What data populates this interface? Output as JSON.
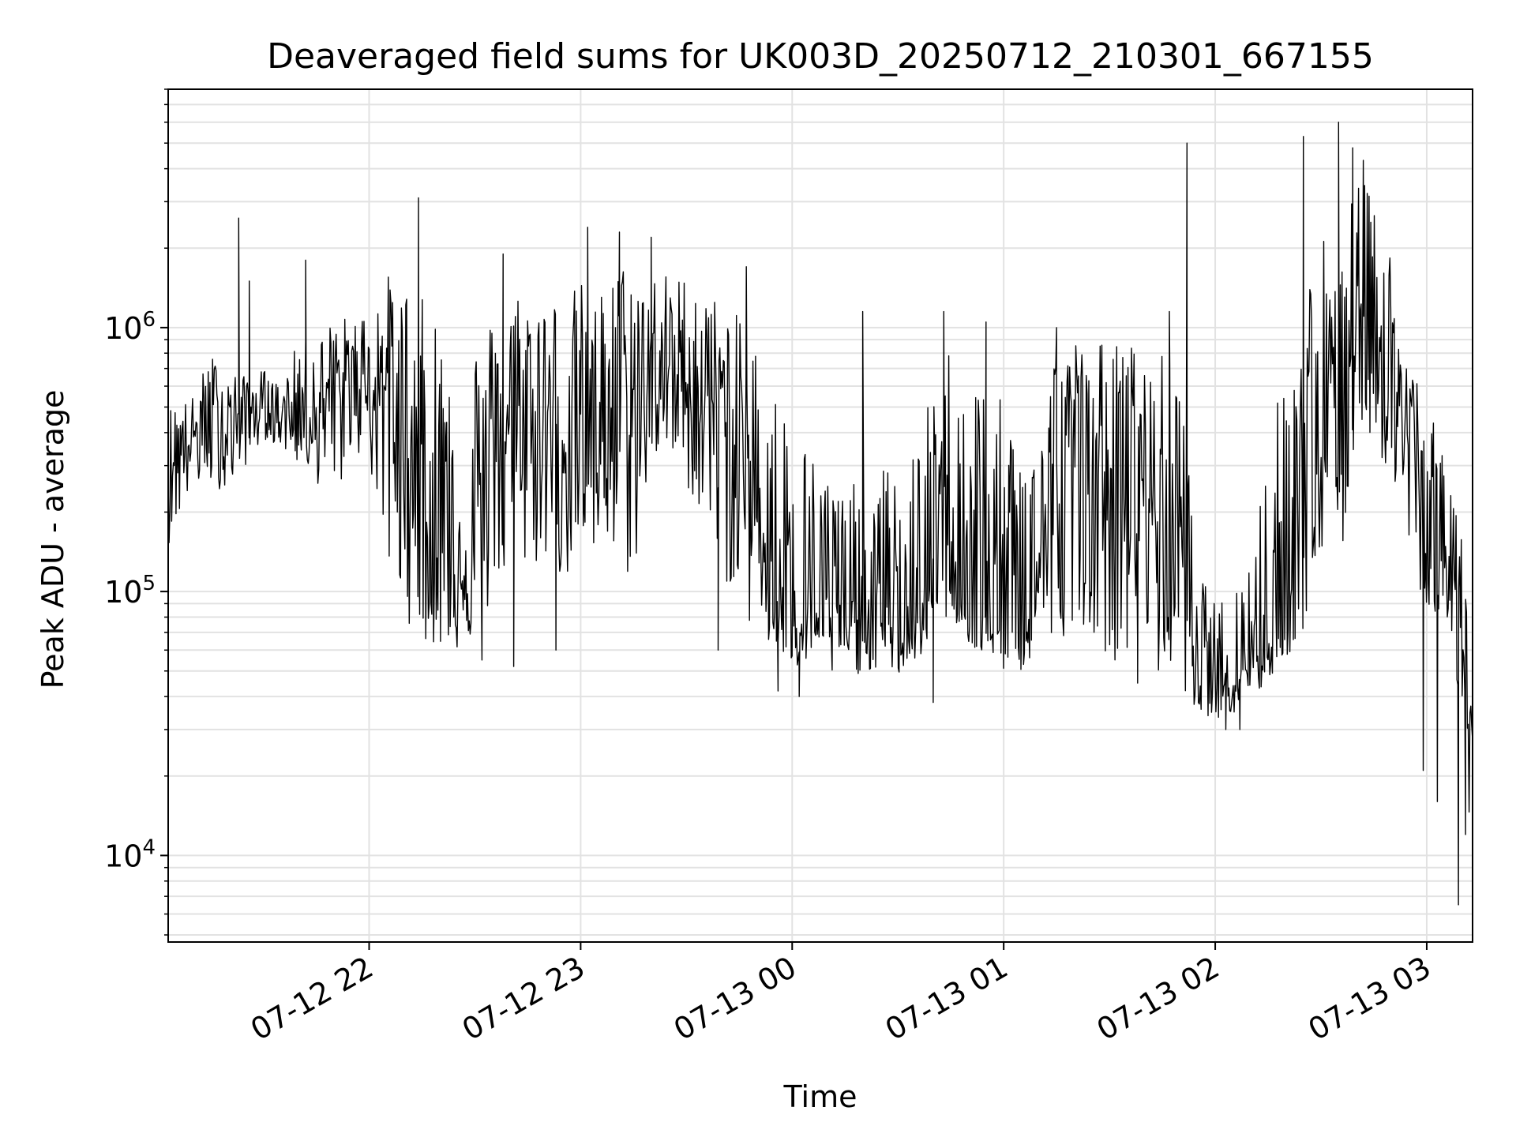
{
  "chart_data": {
    "type": "line",
    "title": "Deaveraged field sums for UK003D_20250712_210301_667155",
    "xlabel": "Time",
    "ylabel": "Peak ADU - average",
    "yscale": "log",
    "ylim": [
      4700,
      8000000
    ],
    "xlim": [
      "07-12 21:03",
      "07-13 03:13"
    ],
    "grid": true,
    "x_ticks": [
      "07-12 22",
      "07-12 23",
      "07-13 00",
      "07-13 01",
      "07-13 02",
      "07-13 03"
    ],
    "y_ticks": [
      {
        "value": 10000,
        "base": "10",
        "exp": "4"
      },
      {
        "value": 100000,
        "base": "10",
        "exp": "5"
      },
      {
        "value": 1000000,
        "base": "10",
        "exp": "6"
      }
    ],
    "series": [
      {
        "color": "#000000",
        "x": [
          "07-12 21:03",
          "07-12 21:10",
          "07-12 21:15",
          "07-12 21:20",
          "07-12 21:25",
          "07-12 21:30",
          "07-12 21:35",
          "07-12 21:40",
          "07-12 21:45",
          "07-12 21:50",
          "07-12 21:55",
          "07-12 22:00",
          "07-12 22:05",
          "07-12 22:10",
          "07-12 22:15",
          "07-12 22:20",
          "07-12 22:25",
          "07-12 22:30",
          "07-12 22:35",
          "07-12 22:40",
          "07-12 22:45",
          "07-12 22:50",
          "07-12 22:55",
          "07-12 23:00",
          "07-12 23:05",
          "07-12 23:10",
          "07-12 23:15",
          "07-12 23:20",
          "07-12 23:25",
          "07-12 23:30",
          "07-12 23:35",
          "07-12 23:40",
          "07-12 23:45",
          "07-12 23:50",
          "07-12 23:55",
          "07-13 00:00",
          "07-13 00:05",
          "07-13 00:10",
          "07-13 00:15",
          "07-13 00:20",
          "07-13 00:25",
          "07-13 00:30",
          "07-13 00:35",
          "07-13 00:40",
          "07-13 00:45",
          "07-13 00:50",
          "07-13 00:55",
          "07-13 01:00",
          "07-13 01:05",
          "07-13 01:10",
          "07-13 01:15",
          "07-13 01:20",
          "07-13 01:25",
          "07-13 01:30",
          "07-13 01:35",
          "07-13 01:40",
          "07-13 01:45",
          "07-13 01:50",
          "07-13 01:55",
          "07-13 02:00",
          "07-13 02:05",
          "07-13 02:10",
          "07-13 02:15",
          "07-13 02:20",
          "07-13 02:25",
          "07-13 02:30",
          "07-13 02:35",
          "07-13 02:40",
          "07-13 02:45",
          "07-13 02:50",
          "07-13 02:55",
          "07-13 03:00",
          "07-13 03:05",
          "07-13 03:10",
          "07-13 03:13"
        ],
        "y_mid": [
          350000,
          380000,
          450000,
          420000,
          470000,
          500000,
          460000,
          520000,
          480000,
          550000,
          620000,
          650000,
          600000,
          380000,
          200000,
          150000,
          140000,
          130000,
          350000,
          400000,
          380000,
          420000,
          400000,
          450000,
          480000,
          500000,
          420000,
          600000,
          650000,
          620000,
          550000,
          500000,
          380000,
          200000,
          120000,
          90000,
          85000,
          80000,
          75000,
          80000,
          78000,
          70000,
          75000,
          100000,
          200000,
          90000,
          80000,
          75000,
          70000,
          120000,
          200000,
          400000,
          300000,
          250000,
          280000,
          250000,
          200000,
          180000,
          50000,
          48000,
          50000,
          55000,
          65000,
          80000,
          200000,
          350000,
          300000,
          1500000,
          1200000,
          600000,
          350000,
          200000,
          130000,
          100000,
          25000
        ],
        "y_lo": [
          150000,
          250000,
          250000,
          240000,
          300000,
          380000,
          350000,
          300000,
          260000,
          200000,
          350000,
          300000,
          120000,
          80000,
          65000,
          60000,
          60000,
          65000,
          90000,
          120000,
          120000,
          130000,
          110000,
          110000,
          130000,
          120000,
          110000,
          320000,
          320000,
          250000,
          180000,
          120000,
          80000,
          70000,
          55000,
          50000,
          50000,
          48000,
          45000,
          50000,
          50000,
          48000,
          52000,
          70000,
          80000,
          60000,
          55000,
          50000,
          50000,
          55000,
          60000,
          80000,
          70000,
          55000,
          55000,
          55000,
          45000,
          45000,
          35000,
          33000,
          33000,
          38000,
          45000,
          55000,
          70000,
          120000,
          100000,
          400000,
          380000,
          250000,
          120000,
          90000,
          50000,
          40000,
          8000
        ],
        "y_hi": [
          500000,
          550000,
          800000,
          700000,
          650000,
          700000,
          600000,
          900000,
          900000,
          1100000,
          1100000,
          1200000,
          1600000,
          1500000,
          1300000,
          1200000,
          1100000,
          1000000,
          1100000,
          1400000,
          1500000,
          1400000,
          1300000,
          1500000,
          1300000,
          1800000,
          1800000,
          1700000,
          1600000,
          1600000,
          1500000,
          1200000,
          1100000,
          900000,
          600000,
          500000,
          350000,
          300000,
          250000,
          280000,
          300000,
          300000,
          350000,
          600000,
          900000,
          700000,
          700000,
          500000,
          400000,
          600000,
          900000,
          900000,
          900000,
          900000,
          900000,
          800000,
          800000,
          700000,
          120000,
          90000,
          100000,
          150000,
          400000,
          700000,
          1500000,
          2500000,
          1500000,
          4000000,
          3000000,
          2000000,
          900000,
          500000,
          350000,
          180000,
          40000
        ]
      }
    ],
    "spikes": [
      {
        "x": "07-12 21:23",
        "y": 2600000
      },
      {
        "x": "07-12 21:26",
        "y": 1500000
      },
      {
        "x": "07-12 21:42",
        "y": 1800000
      },
      {
        "x": "07-12 22:08",
        "y": 200000
      },
      {
        "x": "07-12 22:14",
        "y": 3100000
      },
      {
        "x": "07-12 22:24",
        "y": 80000
      },
      {
        "x": "07-12 22:32",
        "y": 55000
      },
      {
        "x": "07-12 22:38",
        "y": 1900000
      },
      {
        "x": "07-12 22:41",
        "y": 52000
      },
      {
        "x": "07-12 22:53",
        "y": 60000
      },
      {
        "x": "07-12 23:02",
        "y": 2400000
      },
      {
        "x": "07-12 23:11",
        "y": 2300000
      },
      {
        "x": "07-12 23:20",
        "y": 2200000
      },
      {
        "x": "07-12 23:39",
        "y": 60000
      },
      {
        "x": "07-12 23:47",
        "y": 1700000
      },
      {
        "x": "07-12 23:56",
        "y": 42000
      },
      {
        "x": "07-13 00:02",
        "y": 40000
      },
      {
        "x": "07-13 00:20",
        "y": 1150000
      },
      {
        "x": "07-13 00:40",
        "y": 38000
      },
      {
        "x": "07-13 00:43",
        "y": 1150000
      },
      {
        "x": "07-13 00:55",
        "y": 1050000
      },
      {
        "x": "07-13 01:15",
        "y": 1000000
      },
      {
        "x": "07-13 01:38",
        "y": 45000
      },
      {
        "x": "07-13 01:47",
        "y": 1150000
      },
      {
        "x": "07-13 01:52",
        "y": 5000000
      },
      {
        "x": "07-13 02:03",
        "y": 30000
      },
      {
        "x": "07-13 02:07",
        "y": 30000
      },
      {
        "x": "07-13 02:25",
        "y": 5300000
      },
      {
        "x": "07-13 02:35",
        "y": 6000000
      },
      {
        "x": "07-13 02:39",
        "y": 4800000
      },
      {
        "x": "07-13 02:42",
        "y": 4300000
      },
      {
        "x": "07-13 02:59",
        "y": 21000
      },
      {
        "x": "07-13 03:03",
        "y": 16000
      },
      {
        "x": "07-13 03:09",
        "y": 6500
      },
      {
        "x": "07-13 03:11",
        "y": 12000
      }
    ]
  }
}
